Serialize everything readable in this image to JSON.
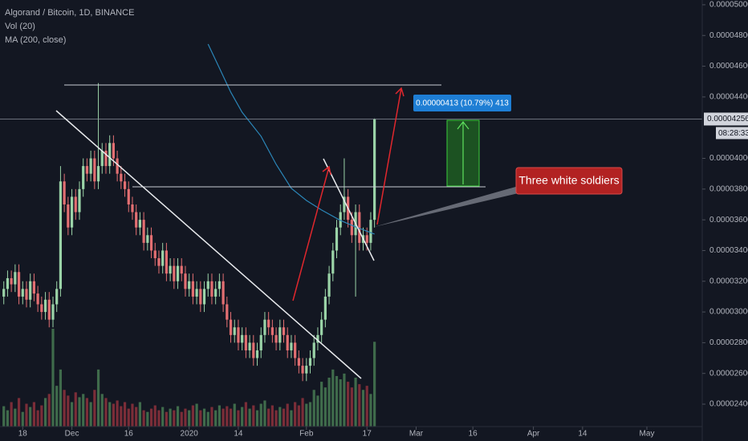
{
  "chart_data": {
    "type": "candlestick",
    "title": "Algorand / Bitcoin, 1D, BINANCE",
    "x": [
      "2019-11-13",
      "2019-11-14",
      "2019-11-15",
      "2019-11-16",
      "2019-11-17",
      "2019-11-18",
      "2019-11-19",
      "2019-11-20",
      "2019-11-21",
      "2019-11-22",
      "2019-11-23",
      "2019-11-24",
      "2019-11-25",
      "2019-11-26",
      "2019-11-27",
      "2019-11-28",
      "2019-11-29",
      "2019-11-30",
      "2019-12-01",
      "2019-12-02",
      "2019-12-03",
      "2019-12-04",
      "2019-12-05",
      "2019-12-06",
      "2019-12-07",
      "2019-12-08",
      "2019-12-09",
      "2019-12-10",
      "2019-12-11",
      "2019-12-12",
      "2019-12-13",
      "2019-12-14",
      "2019-12-15",
      "2019-12-16",
      "2019-12-17",
      "2019-12-18",
      "2019-12-19",
      "2019-12-20",
      "2019-12-21",
      "2019-12-22",
      "2019-12-23",
      "2019-12-24",
      "2019-12-25",
      "2019-12-26",
      "2019-12-27",
      "2019-12-28",
      "2019-12-29",
      "2019-12-30",
      "2019-12-31",
      "2020-01-01",
      "2020-01-02",
      "2020-01-03",
      "2020-01-04",
      "2020-01-05",
      "2020-01-06",
      "2020-01-07",
      "2020-01-08",
      "2020-01-09",
      "2020-01-10",
      "2020-01-11",
      "2020-01-12",
      "2020-01-13",
      "2020-01-14",
      "2020-01-15",
      "2020-01-16",
      "2020-01-17",
      "2020-01-18",
      "2020-01-19",
      "2020-01-20",
      "2020-01-21",
      "2020-01-22",
      "2020-01-23",
      "2020-01-24",
      "2020-01-25",
      "2020-01-26",
      "2020-01-27",
      "2020-01-28",
      "2020-01-29",
      "2020-01-30",
      "2020-01-31",
      "2020-02-01",
      "2020-02-02",
      "2020-02-03",
      "2020-02-04",
      "2020-02-05",
      "2020-02-06",
      "2020-02-07",
      "2020-02-08",
      "2020-02-09",
      "2020-02-10",
      "2020-02-11",
      "2020-02-12",
      "2020-02-13",
      "2020-02-14",
      "2020-02-15",
      "2020-02-16",
      "2020-02-17",
      "2020-02-18",
      "2020-02-19"
    ],
    "open": [
      3.1e-05,
      3.15e-05,
      3.22e-05,
      3.18e-05,
      3.26e-05,
      3.1e-05,
      3.15e-05,
      3.08e-05,
      3.2e-05,
      3.12e-05,
      3.05e-05,
      3e-05,
      3.08e-05,
      2.95e-05,
      3.05e-05,
      3.15e-05,
      3.85e-05,
      3.7e-05,
      3.55e-05,
      3.75e-05,
      3.65e-05,
      3.8e-05,
      3.95e-05,
      3.9e-05,
      4e-05,
      3.85e-05,
      3.95e-05,
      4.05e-05,
      3.95e-05,
      4.1e-05,
      4e-05,
      3.9e-05,
      3.85e-05,
      3.8e-05,
      3.7e-05,
      3.65e-05,
      3.55e-05,
      3.6e-05,
      3.45e-05,
      3.5e-05,
      3.4e-05,
      3.35e-05,
      3.3e-05,
      3.4e-05,
      3.25e-05,
      3.3e-05,
      3.2e-05,
      3.3e-05,
      3.25e-05,
      3.15e-05,
      3.2e-05,
      3.1e-05,
      3.15e-05,
      3.05e-05,
      3.15e-05,
      3.2e-05,
      3.1e-05,
      3.15e-05,
      3.2e-05,
      3.05e-05,
      2.95e-05,
      2.85e-05,
      2.9e-05,
      2.8e-05,
      2.85e-05,
      2.75e-05,
      2.8e-05,
      2.7e-05,
      2.75e-05,
      2.85e-05,
      2.95e-05,
      2.9e-05,
      2.85e-05,
      2.8e-05,
      2.9e-05,
      2.85e-05,
      2.75e-05,
      2.8e-05,
      2.7e-05,
      2.65e-05,
      2.6e-05,
      2.65e-05,
      2.7e-05,
      2.8e-05,
      2.85e-05,
      2.95e-05,
      3.1e-05,
      3.25e-05,
      3.4e-05,
      3.55e-05,
      3.65e-05,
      3.75e-05,
      3.6e-05,
      3.5e-05,
      3.65e-05,
      3.45e-05,
      3.5e-05,
      3.45e-05,
      3.6e-05
    ],
    "high": [
      3.2e-05,
      3.27e-05,
      3.27e-05,
      3.31e-05,
      3.31e-05,
      3.2e-05,
      3.2e-05,
      3.25e-05,
      3.25e-05,
      3.17e-05,
      3.1e-05,
      3.13e-05,
      3.13e-05,
      3.1e-05,
      3.2e-05,
      3.95e-05,
      3.9e-05,
      3.75e-05,
      3.8e-05,
      3.8e-05,
      3.85e-05,
      4e-05,
      4e-05,
      4.05e-05,
      4.05e-05,
      4.49e-05,
      4.1e-05,
      4.1e-05,
      4.15e-05,
      4.15e-05,
      4.05e-05,
      3.95e-05,
      3.9e-05,
      3.85e-05,
      3.75e-05,
      3.7e-05,
      3.65e-05,
      3.65e-05,
      3.55e-05,
      3.55e-05,
      3.45e-05,
      3.4e-05,
      3.45e-05,
      3.45e-05,
      3.35e-05,
      3.35e-05,
      3.35e-05,
      3.35e-05,
      3.3e-05,
      3.25e-05,
      3.25e-05,
      3.2e-05,
      3.2e-05,
      3.2e-05,
      3.25e-05,
      3.25e-05,
      3.2e-05,
      3.25e-05,
      3.25e-05,
      3.1e-05,
      3e-05,
      2.95e-05,
      2.95e-05,
      2.9e-05,
      2.9e-05,
      2.85e-05,
      2.85e-05,
      2.8e-05,
      2.9e-05,
      3e-05,
      3e-05,
      2.95e-05,
      2.9e-05,
      2.95e-05,
      2.95e-05,
      2.9e-05,
      2.85e-05,
      2.85e-05,
      2.75e-05,
      2.7e-05,
      2.7e-05,
      2.75e-05,
      2.85e-05,
      2.9e-05,
      3e-05,
      3.15e-05,
      3.3e-05,
      3.45e-05,
      3.6e-05,
      3.7e-05,
      4e-05,
      3.8e-05,
      3.65e-05,
      3.7e-05,
      3.7e-05,
      3.55e-05,
      3.55e-05,
      3.65e-05,
      4.26e-05
    ],
    "low": [
      3.05e-05,
      3.1e-05,
      3.13e-05,
      3.13e-05,
      3.05e-05,
      3.05e-05,
      3.03e-05,
      3.03e-05,
      3.07e-05,
      3e-05,
      2.95e-05,
      2.95e-05,
      2.9e-05,
      2.9e-05,
      3e-05,
      3.1e-05,
      3.65e-05,
      3.5e-05,
      3.5e-05,
      3.6e-05,
      3.6e-05,
      3.75e-05,
      3.85e-05,
      3.85e-05,
      3.8e-05,
      3.8e-05,
      3.9e-05,
      3.9e-05,
      3.9e-05,
      3.95e-05,
      3.85e-05,
      3.8e-05,
      3.75e-05,
      3.65e-05,
      3.6e-05,
      3.5e-05,
      3.5e-05,
      3.4e-05,
      3.4e-05,
      3.35e-05,
      3.3e-05,
      3.25e-05,
      3.25e-05,
      3.2e-05,
      3.2e-05,
      3.15e-05,
      3.15e-05,
      3.2e-05,
      3.1e-05,
      3.1e-05,
      3.05e-05,
      3.05e-05,
      3e-05,
      3e-05,
      3.1e-05,
      3.05e-05,
      3.05e-05,
      3.1e-05,
      3e-05,
      2.9e-05,
      2.8e-05,
      2.8e-05,
      2.75e-05,
      2.75e-05,
      2.7e-05,
      2.7e-05,
      2.65e-05,
      2.65e-05,
      2.7e-05,
      2.8e-05,
      2.85e-05,
      2.8e-05,
      2.75e-05,
      2.75e-05,
      2.8e-05,
      2.7e-05,
      2.7e-05,
      2.65e-05,
      2.6e-05,
      2.55e-05,
      2.55e-05,
      2.6e-05,
      2.65e-05,
      2.75e-05,
      2.8e-05,
      2.9e-05,
      3.05e-05,
      3.2e-05,
      3.35e-05,
      3.5e-05,
      3.6e-05,
      3.55e-05,
      3.45e-05,
      3.1e-05,
      3.4e-05,
      3.4e-05,
      3.4e-05,
      3.4e-05,
      3.55e-05
    ],
    "close": [
      3.15e-05,
      3.22e-05,
      3.18e-05,
      3.26e-05,
      3.1e-05,
      3.15e-05,
      3.08e-05,
      3.2e-05,
      3.12e-05,
      3.05e-05,
      3e-05,
      3.08e-05,
      2.95e-05,
      3.05e-05,
      3.15e-05,
      3.85e-05,
      3.7e-05,
      3.55e-05,
      3.75e-05,
      3.65e-05,
      3.8e-05,
      3.95e-05,
      3.9e-05,
      4e-05,
      3.85e-05,
      3.95e-05,
      4.05e-05,
      3.95e-05,
      4.1e-05,
      4e-05,
      3.9e-05,
      3.85e-05,
      3.8e-05,
      3.7e-05,
      3.65e-05,
      3.55e-05,
      3.6e-05,
      3.45e-05,
      3.5e-05,
      3.4e-05,
      3.35e-05,
      3.3e-05,
      3.4e-05,
      3.25e-05,
      3.3e-05,
      3.2e-05,
      3.3e-05,
      3.25e-05,
      3.15e-05,
      3.2e-05,
      3.1e-05,
      3.15e-05,
      3.05e-05,
      3.15e-05,
      3.2e-05,
      3.1e-05,
      3.15e-05,
      3.2e-05,
      3.05e-05,
      2.95e-05,
      2.85e-05,
      2.9e-05,
      2.8e-05,
      2.85e-05,
      2.75e-05,
      2.8e-05,
      2.7e-05,
      2.75e-05,
      2.85e-05,
      2.95e-05,
      2.9e-05,
      2.85e-05,
      2.8e-05,
      2.9e-05,
      2.85e-05,
      2.75e-05,
      2.8e-05,
      2.7e-05,
      2.65e-05,
      2.6e-05,
      2.65e-05,
      2.7e-05,
      2.8e-05,
      2.85e-05,
      2.95e-05,
      3.1e-05,
      3.25e-05,
      3.4e-05,
      3.55e-05,
      3.65e-05,
      3.75e-05,
      3.6e-05,
      3.5e-05,
      3.65e-05,
      3.45e-05,
      3.5e-05,
      3.45e-05,
      3.6e-05,
      4.256e-05
    ],
    "volume": {
      "name": "Vol (20)",
      "values": [
        25,
        20,
        30,
        22,
        35,
        18,
        28,
        24,
        30,
        20,
        26,
        35,
        40,
        120,
        50,
        70,
        45,
        38,
        30,
        42,
        36,
        40,
        35,
        30,
        45,
        70,
        40,
        35,
        30,
        28,
        32,
        25,
        30,
        22,
        28,
        24,
        30,
        20,
        18,
        22,
        26,
        20,
        24,
        18,
        22,
        20,
        25,
        18,
        22,
        20,
        26,
        28,
        20,
        22,
        18,
        24,
        20,
        26,
        22,
        25,
        22,
        28,
        20,
        24,
        30,
        22,
        26,
        20,
        28,
        32,
        22,
        26,
        20,
        24,
        22,
        28,
        20,
        30,
        26,
        35,
        28,
        30,
        45,
        38,
        55,
        48,
        60,
        70,
        62,
        58,
        65,
        55,
        48,
        60,
        52,
        45,
        50,
        40,
        104
      ]
    },
    "ma": {
      "name": "MA (200, close)",
      "color": "#2b86b8",
      "x": [
        "2020-01-06",
        "2020-01-09",
        "2020-01-12",
        "2020-01-15",
        "2020-01-20",
        "2020-01-24",
        "2020-01-28",
        "2020-02-01",
        "2020-02-05",
        "2020-02-10",
        "2020-02-14",
        "2020-02-19"
      ],
      "values": [
        4.744e-05,
        4.588e-05,
        4.431e-05,
        4.3e-05,
        4.144e-05,
        3.961e-05,
        3.805e-05,
        3.726e-05,
        3.664e-05,
        3.596e-05,
        3.554e-05,
        3.507e-05
      ]
    },
    "up_color": "#9bd4a8",
    "down_color": "#e36f72",
    "vol_up_color": "#3f6b4b",
    "vol_down_color": "#7b2d38",
    "last_price_label": "0.00004256",
    "countdown": "08:28:33",
    "annotations": {
      "measure": "0.00000413 (10.79%) 413",
      "callout": "Three white soldiers"
    },
    "xlim": [
      "2019-11-12",
      "2020-05-15"
    ],
    "xticks": [
      {
        "value": "2019-11-18",
        "label": "18"
      },
      {
        "value": "2019-12-01",
        "label": "Dec"
      },
      {
        "value": "2019-12-16",
        "label": "16"
      },
      {
        "value": "2020-01-01",
        "label": "2020"
      },
      {
        "value": "2020-01-14",
        "label": "14"
      },
      {
        "value": "2020-02-01",
        "label": "Feb"
      },
      {
        "value": "2020-02-17",
        "label": "17"
      },
      {
        "value": "2020-03-01",
        "label": "Mar"
      },
      {
        "value": "2020-03-16",
        "label": "16"
      },
      {
        "value": "2020-04-01",
        "label": "Apr"
      },
      {
        "value": "2020-04-14",
        "label": "14"
      },
      {
        "value": "2020-05-01",
        "label": "May"
      }
    ],
    "ylim": [
      2.254e-05,
      5.031e-05
    ],
    "yticks": [
      {
        "value": 2.4e-05,
        "label": "0.00002400"
      },
      {
        "value": 2.6e-05,
        "label": "0.00002600"
      },
      {
        "value": 2.8e-05,
        "label": "0.00002800"
      },
      {
        "value": 3e-05,
        "label": "0.00003000"
      },
      {
        "value": 3.2e-05,
        "label": "0.00003200"
      },
      {
        "value": 3.4e-05,
        "label": "0.00003400"
      },
      {
        "value": 3.6e-05,
        "label": "0.00003600"
      },
      {
        "value": 3.8e-05,
        "label": "0.00003800"
      },
      {
        "value": 4e-05,
        "label": "0.00004000"
      },
      {
        "value": 4.4e-05,
        "label": "0.00004400"
      },
      {
        "value": 4.6e-05,
        "label": "0.00004600"
      },
      {
        "value": 4.8e-05,
        "label": "0.00004800"
      },
      {
        "value": 5e-05,
        "label": "0.00005000"
      }
    ],
    "grid": false
  }
}
